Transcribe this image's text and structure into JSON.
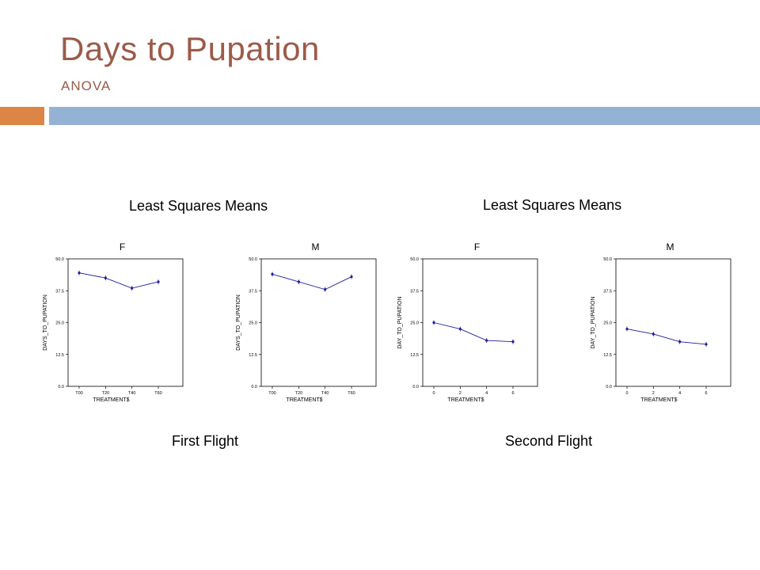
{
  "slide": {
    "title": "Days to Pupation",
    "subtitle": "ANOVA",
    "colors": {
      "title": "#9c5a49",
      "accent_orange": "#dc8545",
      "accent_blue": "#94b3d4",
      "series": "#1c1c9c"
    }
  },
  "groups": [
    {
      "title": "Least Squares Means",
      "caption": "First Flight"
    },
    {
      "title": "Least Squares Means",
      "caption": "Second Flight"
    }
  ],
  "chart_data": [
    {
      "type": "line",
      "panel_title": "F",
      "xlabel": "TREATMENT$",
      "ylabel": "DAYS_TO_PUPATION",
      "categories": [
        "T00",
        "T20",
        "T40",
        "T60"
      ],
      "series": [
        {
          "values": [
            44.5,
            42.5,
            38.5,
            41.0
          ]
        }
      ],
      "ylim": [
        0,
        50
      ],
      "yticks": [
        "0.0",
        "12.5",
        "25.0",
        "37.5",
        "50.0"
      ]
    },
    {
      "type": "line",
      "panel_title": "M",
      "xlabel": "TREATMENT$",
      "ylabel": "DAYS_TO_PUPATION",
      "categories": [
        "T00",
        "T20",
        "T40",
        "T60"
      ],
      "series": [
        {
          "values": [
            44.0,
            41.0,
            38.0,
            43.0
          ]
        }
      ],
      "ylim": [
        0,
        50
      ],
      "yticks": [
        "0.0",
        "12.5",
        "25.0",
        "37.5",
        "50.0"
      ]
    },
    {
      "type": "line",
      "panel_title": "F",
      "xlabel": "TREATMENT$",
      "ylabel": "DAY_TO_PUPATION",
      "categories": [
        "0",
        "2",
        "4",
        "6"
      ],
      "series": [
        {
          "values": [
            25.0,
            22.5,
            18.0,
            17.5
          ]
        }
      ],
      "ylim": [
        0,
        50
      ],
      "yticks": [
        "0.0",
        "12.5",
        "25.0",
        "37.5",
        "50.0"
      ]
    },
    {
      "type": "line",
      "panel_title": "M",
      "xlabel": "TREATMENT$",
      "ylabel": "DAY_TO_PUPATION",
      "categories": [
        "0",
        "2",
        "4",
        "6"
      ],
      "series": [
        {
          "values": [
            22.5,
            20.5,
            17.5,
            16.5
          ]
        }
      ],
      "ylim": [
        0,
        50
      ],
      "yticks": [
        "0.0",
        "12.5",
        "25.0",
        "37.5",
        "50.0"
      ]
    }
  ]
}
